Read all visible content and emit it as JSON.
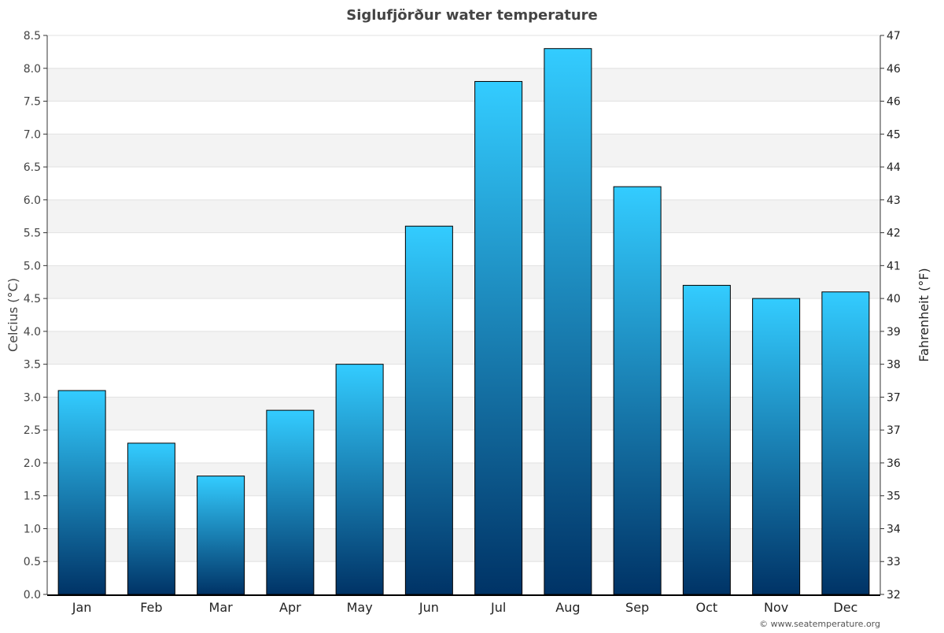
{
  "chart_data": {
    "type": "bar",
    "title": "Siglufjörður water temperature",
    "ylabel": "Celcius (°C)",
    "ylabel_right": "Fahrenheit (°F)",
    "categories": [
      "Jan",
      "Feb",
      "Mar",
      "Apr",
      "May",
      "Jun",
      "Jul",
      "Aug",
      "Sep",
      "Oct",
      "Nov",
      "Dec"
    ],
    "values": [
      3.1,
      2.3,
      1.8,
      2.8,
      3.5,
      5.6,
      7.8,
      8.3,
      6.2,
      4.7,
      4.5,
      4.6
    ],
    "ylim": [
      0,
      8.5
    ],
    "yticks": [
      "0.0",
      "0.5",
      "1.0",
      "1.5",
      "2.0",
      "2.5",
      "3.0",
      "3.5",
      "4.0",
      "4.5",
      "5.0",
      "5.5",
      "6.0",
      "6.5",
      "7.0",
      "7.5",
      "8.0",
      "8.5"
    ],
    "yticks_right": [
      "32",
      "33",
      "34",
      "35",
      "36",
      "37",
      "37",
      "38",
      "39",
      "40",
      "41",
      "42",
      "43",
      "44",
      "45",
      "46",
      "46",
      "47"
    ],
    "grid": true,
    "colors": {
      "bar_top": "#33ccff",
      "bar_bottom": "#003366",
      "band": "#f3f3f3",
      "title": "#444444"
    },
    "credit": "© www.seatemperature.org"
  }
}
